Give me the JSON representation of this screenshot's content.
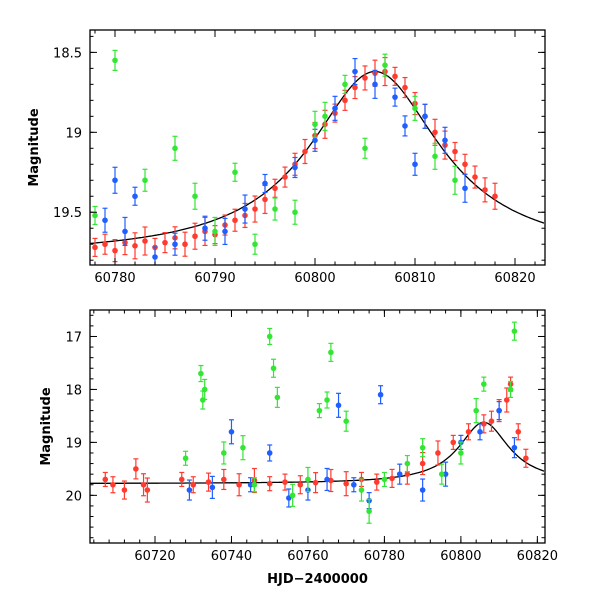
{
  "chart_data": [
    {
      "type": "scatter",
      "panel": "top",
      "xlabel": "",
      "ylabel": "Magnitude",
      "xlim": [
        60777.5,
        60823
      ],
      "ylim": [
        19.83,
        18.36
      ],
      "y_inverted": true,
      "xticks": [
        "60780",
        "60790",
        "60800",
        "60810",
        "60820"
      ],
      "yticks": [
        "18.5",
        "19",
        "19.5"
      ],
      "model_curve": {
        "color": "#000000",
        "form": "lorentzian",
        "peak_x": 60806,
        "peak_mag": 18.62,
        "base_mag": 19.78,
        "width": 8
      },
      "series": [
        {
          "color": "#ff3b2f",
          "points": [
            [
              60778,
              19.72
            ],
            [
              60779,
              19.7
            ],
            [
              60780,
              19.74
            ],
            [
              60781,
              19.69
            ],
            [
              60782,
              19.71
            ],
            [
              60783,
              19.68
            ],
            [
              60784,
              19.72
            ],
            [
              60785,
              19.69
            ],
            [
              60786,
              19.66
            ],
            [
              60787,
              19.7
            ],
            [
              60788,
              19.65
            ],
            [
              60789,
              19.62
            ],
            [
              60790,
              19.64
            ],
            [
              60791,
              19.58
            ],
            [
              60792,
              19.55
            ],
            [
              60793,
              19.52
            ],
            [
              60794,
              19.48
            ],
            [
              60795,
              19.42
            ],
            [
              60796,
              19.35
            ],
            [
              60797,
              19.28
            ],
            [
              60798,
              19.2
            ],
            [
              60799,
              19.12
            ],
            [
              60800,
              19.02
            ],
            [
              60801,
              18.95
            ],
            [
              60802,
              18.88
            ],
            [
              60803,
              18.8
            ],
            [
              60804,
              18.72
            ],
            [
              60805,
              18.66
            ],
            [
              60806,
              18.63
            ],
            [
              60807,
              18.62
            ],
            [
              60808,
              18.65
            ],
            [
              60809,
              18.72
            ],
            [
              60810,
              18.82
            ],
            [
              60811,
              18.9
            ],
            [
              60812,
              19.0
            ],
            [
              60813,
              19.08
            ],
            [
              60814,
              19.12
            ],
            [
              60815,
              19.2
            ],
            [
              60816,
              19.28
            ],
            [
              60817,
              19.36
            ],
            [
              60818,
              19.4
            ]
          ]
        },
        {
          "color": "#1f5fff",
          "points": [
            [
              60779,
              19.55
            ],
            [
              60780,
              19.3
            ],
            [
              60781,
              19.62
            ],
            [
              60782,
              19.4
            ],
            [
              60784,
              19.78
            ],
            [
              60786,
              19.7
            ],
            [
              60789,
              19.6
            ],
            [
              60791,
              19.62
            ],
            [
              60793,
              19.48
            ],
            [
              60795,
              19.32
            ],
            [
              60798,
              19.22
            ],
            [
              60800,
              19.05
            ],
            [
              60802,
              18.85
            ],
            [
              60804,
              18.62
            ],
            [
              60806,
              18.7
            ],
            [
              60808,
              18.78
            ],
            [
              60809,
              18.96
            ],
            [
              60810,
              19.2
            ],
            [
              60811,
              18.9
            ],
            [
              60813,
              19.05
            ],
            [
              60815,
              19.35
            ]
          ]
        },
        {
          "color": "#33e633",
          "points": [
            [
              60778,
              19.52
            ],
            [
              60780,
              18.55
            ],
            [
              60783,
              19.3
            ],
            [
              60786,
              19.1
            ],
            [
              60788,
              19.4
            ],
            [
              60790,
              19.62
            ],
            [
              60792,
              19.25
            ],
            [
              60794,
              19.7
            ],
            [
              60796,
              19.48
            ],
            [
              60798,
              19.5
            ],
            [
              60800,
              18.95
            ],
            [
              60801,
              18.9
            ],
            [
              60803,
              18.7
            ],
            [
              60805,
              19.1
            ],
            [
              60807,
              18.58
            ],
            [
              60810,
              18.85
            ],
            [
              60812,
              19.15
            ],
            [
              60814,
              19.3
            ]
          ]
        }
      ]
    },
    {
      "type": "scatter",
      "panel": "bottom",
      "xlabel": "HJD−2400000",
      "ylabel": "Magnitude",
      "xlim": [
        60703,
        60822
      ],
      "ylim": [
        20.9,
        16.5
      ],
      "y_inverted": true,
      "xticks": [
        "60720",
        "60740",
        "60760",
        "60780",
        "60800",
        "60820"
      ],
      "yticks": [
        "17",
        "18",
        "19",
        "20"
      ],
      "model_curve": {
        "color": "#000000",
        "form": "lorentzian",
        "peak_x": 60806,
        "peak_mag": 18.62,
        "base_mag": 19.78,
        "width": 8
      },
      "series": [
        {
          "color": "#ff3b2f",
          "points": [
            [
              60707,
              19.7
            ],
            [
              60709,
              19.8
            ],
            [
              60712,
              19.9
            ],
            [
              60715,
              19.5
            ],
            [
              60717,
              19.8
            ],
            [
              60718,
              19.9
            ],
            [
              60727,
              19.7
            ],
            [
              60730,
              19.8
            ],
            [
              60734,
              19.75
            ],
            [
              60738,
              19.7
            ],
            [
              60742,
              19.8
            ],
            [
              60746,
              19.72
            ],
            [
              60750,
              19.78
            ],
            [
              60754,
              19.75
            ],
            [
              60758,
              19.8
            ],
            [
              60762,
              19.76
            ],
            [
              60766,
              19.72
            ],
            [
              60770,
              19.78
            ],
            [
              60774,
              19.7
            ],
            [
              60778,
              19.75
            ],
            [
              60782,
              19.68
            ],
            [
              60786,
              19.6
            ],
            [
              60790,
              19.4
            ],
            [
              60794,
              19.2
            ],
            [
              60798,
              19.0
            ],
            [
              60802,
              18.8
            ],
            [
              60806,
              18.65
            ],
            [
              60808,
              18.6
            ],
            [
              60810,
              18.4
            ],
            [
              60812,
              18.2
            ],
            [
              60813,
              17.9
            ],
            [
              60815,
              18.8
            ],
            [
              60817,
              19.3
            ]
          ]
        },
        {
          "color": "#1f5fff",
          "points": [
            [
              60729,
              19.9
            ],
            [
              60735,
              19.85
            ],
            [
              60740,
              18.8
            ],
            [
              60745,
              19.8
            ],
            [
              60750,
              19.2
            ],
            [
              60755,
              20.05
            ],
            [
              60760,
              19.9
            ],
            [
              60765,
              19.7
            ],
            [
              60768,
              18.3
            ],
            [
              60772,
              19.8
            ],
            [
              60776,
              20.1
            ],
            [
              60779,
              18.1
            ],
            [
              60784,
              19.6
            ],
            [
              60790,
              19.9
            ],
            [
              60796,
              19.6
            ],
            [
              60800,
              19.0
            ],
            [
              60805,
              18.8
            ],
            [
              60810,
              18.4
            ],
            [
              60814,
              19.1
            ]
          ]
        },
        {
          "color": "#33e633",
          "points": [
            [
              60728,
              19.3
            ],
            [
              60732,
              17.7
            ],
            [
              60732.5,
              18.2
            ],
            [
              60733,
              18.0
            ],
            [
              60738,
              19.2
            ],
            [
              60743,
              19.1
            ],
            [
              60746,
              19.8
            ],
            [
              60750,
              17.0
            ],
            [
              60751,
              17.6
            ],
            [
              60752,
              18.15
            ],
            [
              60756,
              20.0
            ],
            [
              60760,
              19.7
            ],
            [
              60763,
              18.4
            ],
            [
              60765,
              18.2
            ],
            [
              60766,
              17.3
            ],
            [
              60770,
              18.6
            ],
            [
              60774,
              19.9
            ],
            [
              60776,
              20.3
            ],
            [
              60780,
              19.7
            ],
            [
              60786,
              19.4
            ],
            [
              60790,
              19.1
            ],
            [
              60795,
              19.6
            ],
            [
              60800,
              19.2
            ],
            [
              60804,
              18.4
            ],
            [
              60806,
              17.9
            ],
            [
              60813,
              18.0
            ],
            [
              60814,
              16.9
            ]
          ]
        }
      ]
    }
  ]
}
